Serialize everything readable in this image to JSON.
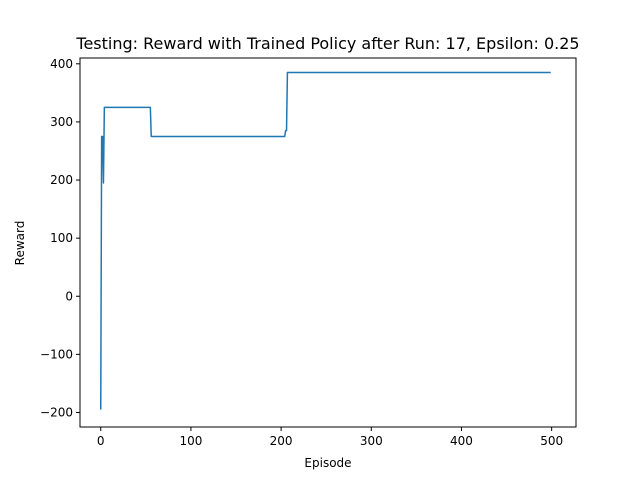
{
  "chart_data": {
    "type": "line",
    "title": "Testing: Reward with Trained Policy after Run: 17, Epsilon: 0.25",
    "xlabel": "Episode",
    "ylabel": "Reward",
    "xlim": [
      -23,
      527
    ],
    "ylim": [
      -225,
      410
    ],
    "xticks": [
      0,
      100,
      200,
      300,
      400,
      500
    ],
    "xtick_labels": [
      "0",
      "100",
      "200",
      "300",
      "400",
      "500"
    ],
    "yticks": [
      -200,
      -100,
      0,
      100,
      200,
      300,
      400
    ],
    "ytick_labels": [
      "−200",
      "−100",
      "0",
      "100",
      "200",
      "300",
      "400"
    ],
    "grid": false,
    "series": [
      {
        "color": "#1f77b4",
        "x": [
          0,
          1,
          2,
          3,
          4,
          5,
          55,
          56,
          57,
          204,
          205,
          206,
          207,
          499
        ],
        "y": [
          -195,
          275,
          275,
          195,
          325,
          325,
          325,
          275,
          275,
          275,
          285,
          285,
          385,
          385
        ]
      }
    ]
  }
}
